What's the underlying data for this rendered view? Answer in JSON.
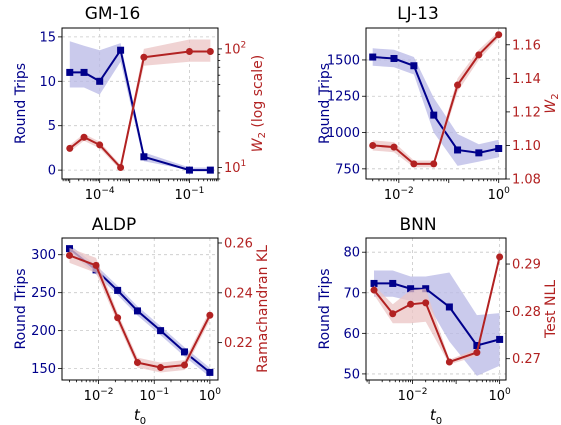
{
  "colors": {
    "primary": "#00008B",
    "secondary": "#B22222",
    "primary_band": "#B8B8E6",
    "secondary_band": "#EBC4C4",
    "grid": "#C8C8C8"
  },
  "chart_data": [
    {
      "id": "gm16",
      "type": "line",
      "title": "GM-16",
      "xlabel": "",
      "x_scale": "log",
      "x": [
        1e-05,
        3e-05,
        0.0001,
        0.0005,
        0.003,
        0.1,
        0.5
      ],
      "xlim": [
        5.5e-06,
        0.9
      ],
      "x_ticks": [
        {
          "value": 0.0001,
          "base": "10",
          "exp": "−4"
        },
        {
          "value": 0.1,
          "base": "10",
          "exp": "−1"
        }
      ],
      "left": {
        "label": "Round Trips",
        "scale": "linear",
        "lim": [
          -1,
          16
        ],
        "ticks": [
          {
            "value": 0,
            "label": "0"
          },
          {
            "value": 5,
            "label": "5"
          },
          {
            "value": 10,
            "label": "10"
          },
          {
            "value": 15,
            "label": "15"
          }
        ],
        "values": [
          11,
          11,
          10,
          13.5,
          1.5,
          0,
          0
        ],
        "band_low": [
          9.3,
          9.3,
          8.5,
          12.2,
          1.0,
          0,
          0
        ],
        "band_high": [
          14.5,
          14,
          13.5,
          14.3,
          2.0,
          0.3,
          0.3
        ]
      },
      "right": {
        "label_main": "W",
        "label_sub": "2",
        "label_tail": " (log scale)",
        "scale": "log",
        "lim": [
          8,
          150
        ],
        "ticks": [
          {
            "value": 10,
            "base": "10",
            "exp": "1"
          },
          {
            "value": 100,
            "base": "10",
            "exp": "2"
          }
        ],
        "values": [
          14.5,
          18,
          15.5,
          10,
          85,
          95,
          95
        ],
        "band_low": [
          13.5,
          16.8,
          14.5,
          9.5,
          72,
          78,
          78
        ],
        "band_high": [
          15.5,
          19.2,
          16.5,
          10.5,
          100,
          120,
          120
        ]
      }
    },
    {
      "id": "lj13",
      "type": "line",
      "title": "LJ-13",
      "xlabel": "",
      "x_scale": "log",
      "x": [
        0.003,
        0.008,
        0.02,
        0.05,
        0.15,
        0.4,
        1.0
      ],
      "xlim": [
        0.0022,
        1.4
      ],
      "x_ticks": [
        {
          "value": 0.01,
          "base": "10",
          "exp": "−2"
        },
        {
          "value": 1,
          "base": "10",
          "exp": "0"
        }
      ],
      "left": {
        "label": "Round Trips",
        "scale": "linear",
        "lim": [
          680,
          1720
        ],
        "ticks": [
          {
            "value": 750,
            "label": "750"
          },
          {
            "value": 1000,
            "label": "1000"
          },
          {
            "value": 1250,
            "label": "1250"
          },
          {
            "value": 1500,
            "label": "1500"
          }
        ],
        "values": [
          1520,
          1510,
          1460,
          1120,
          880,
          860,
          890
        ],
        "band_low": [
          1460,
          1450,
          1400,
          1000,
          770,
          800,
          830
        ],
        "band_high": [
          1580,
          1570,
          1520,
          1240,
          990,
          920,
          950
        ]
      },
      "right": {
        "label_main": "W",
        "label_sub": "2",
        "label_tail": "",
        "scale": "linear",
        "lim": [
          1.08,
          1.17
        ],
        "ticks": [
          {
            "value": 1.08,
            "label": "1.08"
          },
          {
            "value": 1.1,
            "label": "1.10"
          },
          {
            "value": 1.12,
            "label": "1.12"
          },
          {
            "value": 1.14,
            "label": "1.14"
          },
          {
            "value": 1.16,
            "label": "1.16"
          }
        ],
        "values": [
          1.1,
          1.099,
          1.089,
          1.089,
          1.136,
          1.154,
          1.166
        ],
        "band_low": [
          1.097,
          1.096,
          1.087,
          1.087,
          1.132,
          1.151,
          1.164
        ],
        "band_high": [
          1.103,
          1.102,
          1.091,
          1.091,
          1.14,
          1.157,
          1.168
        ]
      }
    },
    {
      "id": "aldp",
      "type": "line",
      "title": "ALDP",
      "xlabel_main": "t",
      "xlabel_sub": "0",
      "x_scale": "log",
      "x": [
        0.003,
        0.009,
        0.022,
        0.05,
        0.13,
        0.35,
        1.0
      ],
      "xlim": [
        0.0022,
        1.4
      ],
      "x_ticks": [
        {
          "value": 0.01,
          "base": "10",
          "exp": "−2"
        },
        {
          "value": 0.1,
          "base": "10",
          "exp": "−1"
        },
        {
          "value": 1,
          "base": "10",
          "exp": "0"
        }
      ],
      "left": {
        "label": "Round Trips",
        "scale": "linear",
        "lim": [
          135,
          322
        ],
        "ticks": [
          {
            "value": 150,
            "label": "150"
          },
          {
            "value": 200,
            "label": "200"
          },
          {
            "value": 250,
            "label": "250"
          },
          {
            "value": 300,
            "label": "300"
          }
        ],
        "values": [
          308,
          280,
          253,
          226,
          200,
          172,
          145
        ],
        "band_low": [
          303,
          274,
          247,
          220,
          194,
          166,
          139
        ],
        "band_high": [
          313,
          286,
          259,
          232,
          206,
          178,
          151
        ]
      },
      "right": {
        "label_main": "Ramachandran KL",
        "label_sub": "",
        "label_tail": "",
        "scale": "linear",
        "lim": [
          0.205,
          0.262
        ],
        "ticks": [
          {
            "value": 0.22,
            "label": "0.22"
          },
          {
            "value": 0.24,
            "label": "0.24"
          },
          {
            "value": 0.26,
            "label": "0.26"
          }
        ],
        "values": [
          0.255,
          0.251,
          0.23,
          0.212,
          0.21,
          0.211,
          0.231
        ],
        "band_low": [
          0.252,
          0.248,
          0.228,
          0.21,
          0.208,
          0.209,
          0.229
        ],
        "band_high": [
          0.258,
          0.254,
          0.232,
          0.214,
          0.212,
          0.213,
          0.233
        ]
      }
    },
    {
      "id": "bnn",
      "type": "line",
      "title": "BNN",
      "xlabel_main": "t",
      "xlabel_sub": "0",
      "x_scale": "log",
      "x": [
        0.0013,
        0.0035,
        0.009,
        0.02,
        0.07,
        0.3,
        1.0
      ],
      "xlim": [
        0.00085,
        1.4
      ],
      "x_ticks": [
        {
          "value": 0.01,
          "base": "10",
          "exp": "−2"
        },
        {
          "value": 1,
          "base": "10",
          "exp": "0"
        }
      ],
      "left": {
        "label": "Round Trips",
        "scale": "linear",
        "lim": [
          48.5,
          83.5
        ],
        "ticks": [
          {
            "value": 50,
            "label": "50"
          },
          {
            "value": 60,
            "label": "60"
          },
          {
            "value": 70,
            "label": "70"
          },
          {
            "value": 80,
            "label": "80"
          }
        ],
        "values": [
          72.3,
          72.3,
          71,
          71,
          66.5,
          57,
          58.5
        ],
        "band_low": [
          69,
          69,
          68,
          68,
          58,
          49.5,
          52
        ],
        "band_high": [
          75.5,
          75.5,
          74,
          74,
          75,
          64.5,
          65
        ]
      },
      "right": {
        "label_main": "Test NLL",
        "label_sub": "",
        "label_tail": "",
        "scale": "linear",
        "lim": [
          0.2655,
          0.2955
        ],
        "ticks": [
          {
            "value": 0.27,
            "label": "0.27"
          },
          {
            "value": 0.28,
            "label": "0.28"
          },
          {
            "value": 0.29,
            "label": "0.29"
          }
        ],
        "values": [
          0.2845,
          0.2795,
          0.2815,
          0.2818,
          0.2693,
          0.2713,
          0.2915
        ],
        "band_low": [
          0.2835,
          0.2775,
          0.2775,
          0.2778,
          0.2688,
          0.2705,
          0.291
        ],
        "band_high": [
          0.2855,
          0.2815,
          0.2845,
          0.2848,
          0.2698,
          0.2721,
          0.292
        ]
      }
    }
  ]
}
